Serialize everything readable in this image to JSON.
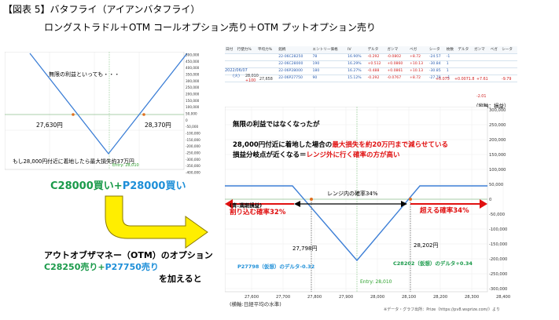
{
  "header": {
    "title": "【図表 5】バタフライ（アイアンバタフライ）",
    "subtitle": "ロングストラドル＋OTM コールオプション売り＋OTM プットオプション売り"
  },
  "left_chart": {
    "note": "無限の利益といっても・・・",
    "left_breakeven": "27,630円",
    "right_breakeven": "28,370円",
    "max_loss_note": "もし28,000円付近に着地したら最大損失約37万円",
    "entry": "Entry: 28,010",
    "y_ticks": [
      "500,000",
      "450,000",
      "400,000",
      "350,000",
      "300,000",
      "250,000",
      "200,000",
      "150,000",
      "100,000",
      "50,000",
      "0",
      "-50,000",
      "-100,000",
      "-150,000",
      "-200,000",
      "-250,000",
      "-300,000",
      "-350,000",
      "-400,000"
    ],
    "line_color": "#3d7fd6"
  },
  "left_labels": {
    "call_buy": "C28000買い",
    "plus": "+",
    "put_buy": "P28000買い"
  },
  "otm_block": {
    "line1": "アウトオブザマネー（OTM）のオプション",
    "call_sell": "C28250売り",
    "plus": "+",
    "put_sell": "P27750売り",
    "line3": "を加えると"
  },
  "table": {
    "headers": [
      "日付",
      "行使力%",
      "平均力%",
      "銘柄",
      "エントリー価格",
      "IV",
      "デルタ",
      "ガンマ",
      "ベガ",
      "シータ",
      "枚数",
      "デルタ",
      "ガンマ",
      "ベガ",
      "シータ"
    ],
    "date": "2022/06/07",
    "day": "(火)",
    "price": "28,010",
    "change": "+100",
    "avg": "27,658",
    "rows": [
      {
        "name": "22-06C28250",
        "entry": "78",
        "iv": "16.90%",
        "delta": "-0.292",
        "gamma": "-0.0802",
        "vega": "+8.72",
        "theta": "-24.57",
        "qty": "-1"
      },
      {
        "name": "22-06C28000",
        "entry": "190",
        "iv": "16.29%",
        "delta": "+0.512",
        "gamma": "+0.0860",
        "vega": "+10.13",
        "theta": "-30.84",
        "qty": "1"
      },
      {
        "name": "22-06P28000",
        "entry": "180",
        "iv": "16.27%",
        "delta": "-0.488",
        "gamma": "+0.0861",
        "vega": "+10.13",
        "theta": "-30.85",
        "qty": "1"
      },
      {
        "name": "22-06P27750",
        "entry": "90",
        "iv": "15.12%",
        "delta": "-0.292",
        "gamma": "-0.0767",
        "vega": "+8.72",
        "theta": "-27.78",
        "qty": "-1"
      }
    ],
    "totals": {
      "delta": "+0.075",
      "gamma": "+0.0071.8",
      "vega": "+7.61",
      "theta": "-9.79",
      "extra": "-2.01"
    },
    "units_note": "（縦軸：損益）"
  },
  "right_chart": {
    "y_ticks": [
      "300,000",
      "250,000",
      "200,000",
      "150,000",
      "100,000",
      "50,000",
      "0",
      "-50,000",
      "-100,000",
      "-150,000",
      "-200,000",
      "-250,000",
      "-300,000"
    ],
    "x_ticks": [
      "27,600",
      "27,700",
      "27,800",
      "27,900",
      "28,000",
      "28,100",
      "28,200",
      "28,300",
      "28,400"
    ],
    "annotation_title": "無限の利益ではなくなったが",
    "annotation_line2_a": "28,000円付近に着地した場合の",
    "annotation_line2_b": "最大損失を約20万円まで減らせている",
    "annotation_line3_a": "損益分岐点が近くなる＝",
    "annotation_line3_b": "レンジ外に行く確率の方が高い",
    "expiry_label": "(青:満期損益)",
    "range_label": "レンジ内の確率34%",
    "left_prob": "割り込む確率32%",
    "right_prob": "超える確率34%",
    "left_be": "27,798円",
    "right_be": "28,202円",
    "put_delta": "P27798（仮想）のデルタ-0.32",
    "call_delta": "C28202（仮想）のデルタ+0.34",
    "entry": "Entry: 28,010",
    "axis_note": "(横軸:日経平均の水準)",
    "source": "※データ・グラフ出所：Prize（https://pv8.wsprize.com/）より"
  }
}
